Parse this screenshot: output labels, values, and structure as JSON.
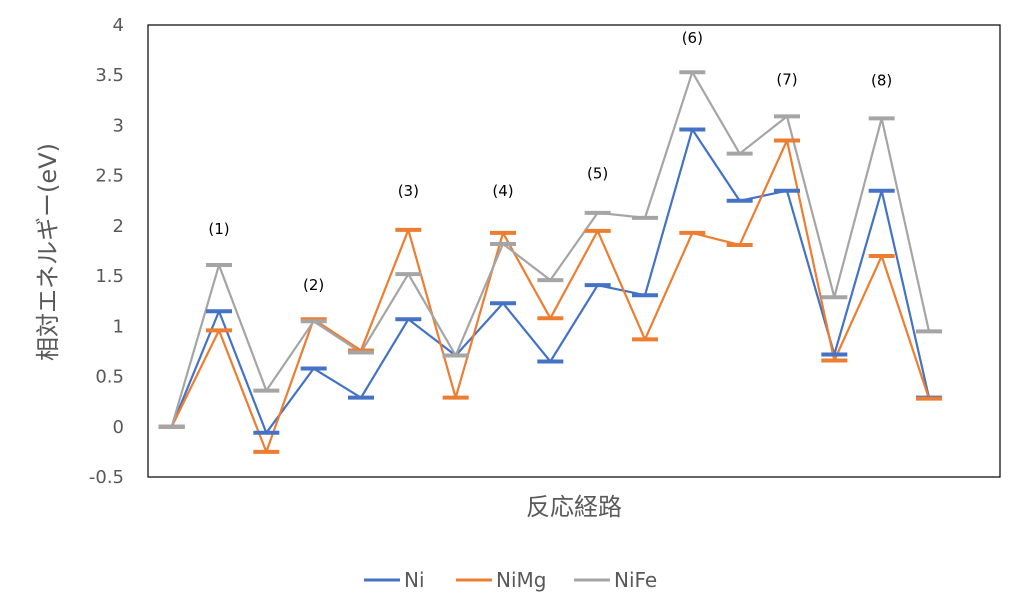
{
  "chart_data": {
    "type": "line",
    "xlabel": "反応経路",
    "ylabel": "相対エネルギー(eV)",
    "ylim": [
      -0.5,
      4
    ],
    "y_ticks": [
      -0.5,
      0,
      0.5,
      1,
      1.5,
      2,
      2.5,
      3,
      3.5,
      4
    ],
    "y_tick_labels": [
      "-0.5",
      "0",
      "0.5",
      "1",
      "1.5",
      "2",
      "2.5",
      "3",
      "3.5",
      "4"
    ],
    "grid": false,
    "legend_position": "bottom",
    "x": [
      1,
      2,
      3,
      4,
      5,
      6,
      7,
      8,
      9,
      10,
      11,
      12,
      13,
      14,
      15,
      16,
      17,
      18
    ],
    "series": [
      {
        "name": "Ni",
        "color": "#4472C4",
        "values": [
          0,
          1.15,
          -0.06,
          0.58,
          0.29,
          1.07,
          0.71,
          1.23,
          0.65,
          1.41,
          1.31,
          2.96,
          2.25,
          2.35,
          0.72,
          2.35,
          0.29,
          null
        ]
      },
      {
        "name": "NiMg",
        "color": "#ED7D31",
        "values": [
          0,
          0.96,
          -0.25,
          1.07,
          0.76,
          1.96,
          0.29,
          1.93,
          1.08,
          1.95,
          0.87,
          1.93,
          1.81,
          2.85,
          0.66,
          1.7,
          0.28,
          null
        ]
      },
      {
        "name": "NiFe",
        "color": "#A5A5A5",
        "values": [
          0,
          1.61,
          0.36,
          1.05,
          0.74,
          1.52,
          0.71,
          1.82,
          1.46,
          2.13,
          2.08,
          3.53,
          2.72,
          3.09,
          1.29,
          3.07,
          0.95,
          null
        ]
      }
    ],
    "annotations": [
      {
        "text": "(1)",
        "x": 2,
        "y": 1.92
      },
      {
        "text": "(2)",
        "x": 4,
        "y": 1.36
      },
      {
        "text": "(3)",
        "x": 6,
        "y": 2.3
      },
      {
        "text": "(4)",
        "x": 8,
        "y": 2.3
      },
      {
        "text": "(5)",
        "x": 10,
        "y": 2.47
      },
      {
        "text": "(6)",
        "x": 12,
        "y": 3.82
      },
      {
        "text": "(7)",
        "x": 14,
        "y": 3.41
      },
      {
        "text": "(8)",
        "x": 16,
        "y": 3.4
      }
    ]
  }
}
